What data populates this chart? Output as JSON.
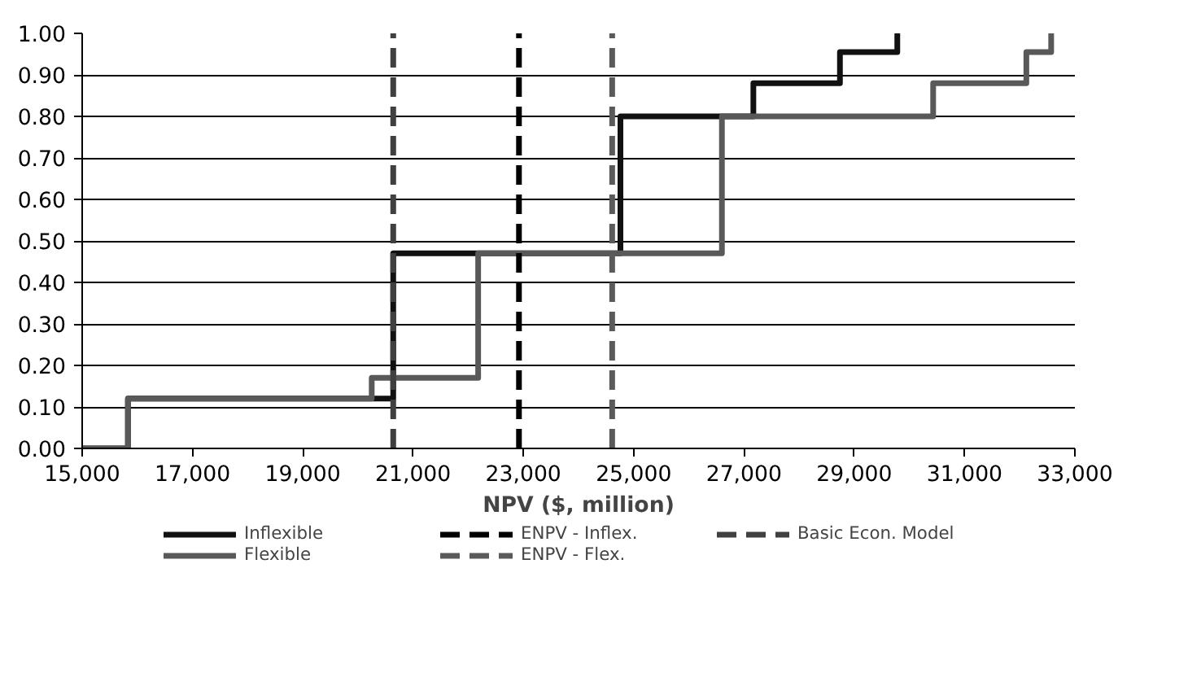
{
  "chart_data": {
    "type": "step",
    "xlabel": "NPV ($, million)",
    "xlim": [
      15000,
      33000
    ],
    "xticks": [
      {
        "value": 15000,
        "label": "15,000"
      },
      {
        "value": 17000,
        "label": "17,000"
      },
      {
        "value": 19000,
        "label": "19,000"
      },
      {
        "value": 21000,
        "label": "21,000"
      },
      {
        "value": 23000,
        "label": "23,000"
      },
      {
        "value": 25000,
        "label": "25,000"
      },
      {
        "value": 27000,
        "label": "27,000"
      },
      {
        "value": 29000,
        "label": "29,000"
      },
      {
        "value": 31000,
        "label": "31,000"
      },
      {
        "value": 33000,
        "label": "33,000"
      }
    ],
    "ylim": [
      0,
      1
    ],
    "yticks": [
      {
        "value": 0,
        "label": "0.00"
      },
      {
        "value": 0.1,
        "label": "0.10"
      },
      {
        "value": 0.2,
        "label": "0.20"
      },
      {
        "value": 0.3,
        "label": "0.30"
      },
      {
        "value": 0.4,
        "label": "0.40"
      },
      {
        "value": 0.5,
        "label": "0.50"
      },
      {
        "value": 0.6,
        "label": "0.60"
      },
      {
        "value": 0.7,
        "label": "0.70"
      },
      {
        "value": 0.8,
        "label": "0.80"
      },
      {
        "value": 0.9,
        "label": "0.90"
      },
      {
        "value": 1,
        "label": "1.00"
      }
    ],
    "grid": "y",
    "legend": "bottom",
    "line_style": "solid",
    "series": [
      {
        "name": "Inflexible",
        "color": "#111111",
        "x": [
          15000,
          15830,
          20640,
          24760,
          27170,
          28740,
          29780
        ],
        "values": [
          0,
          0.12,
          0.47,
          0.8,
          0.88,
          0.955,
          1.0
        ]
      },
      {
        "name": "Flexible",
        "color": "#595959",
        "x": [
          15000,
          15830,
          20250,
          22180,
          26600,
          30430,
          32120,
          32570
        ],
        "values": [
          0,
          0.12,
          0.17,
          0.47,
          0.8,
          0.88,
          0.955,
          1.0
        ]
      }
    ],
    "ref_lines": [
      {
        "axis": "x",
        "value": 22920,
        "label": "ENPV - Inflex.",
        "color": "#000000",
        "line_style": "dashed"
      },
      {
        "axis": "x",
        "value": 24610,
        "label": "ENPV - Flex.",
        "color": "#5a5a5a",
        "line_style": "dashed"
      },
      {
        "axis": "x",
        "value": 20640,
        "label": "Basic Econ. Model",
        "color": "#404040",
        "line_style": "dashed"
      }
    ]
  }
}
